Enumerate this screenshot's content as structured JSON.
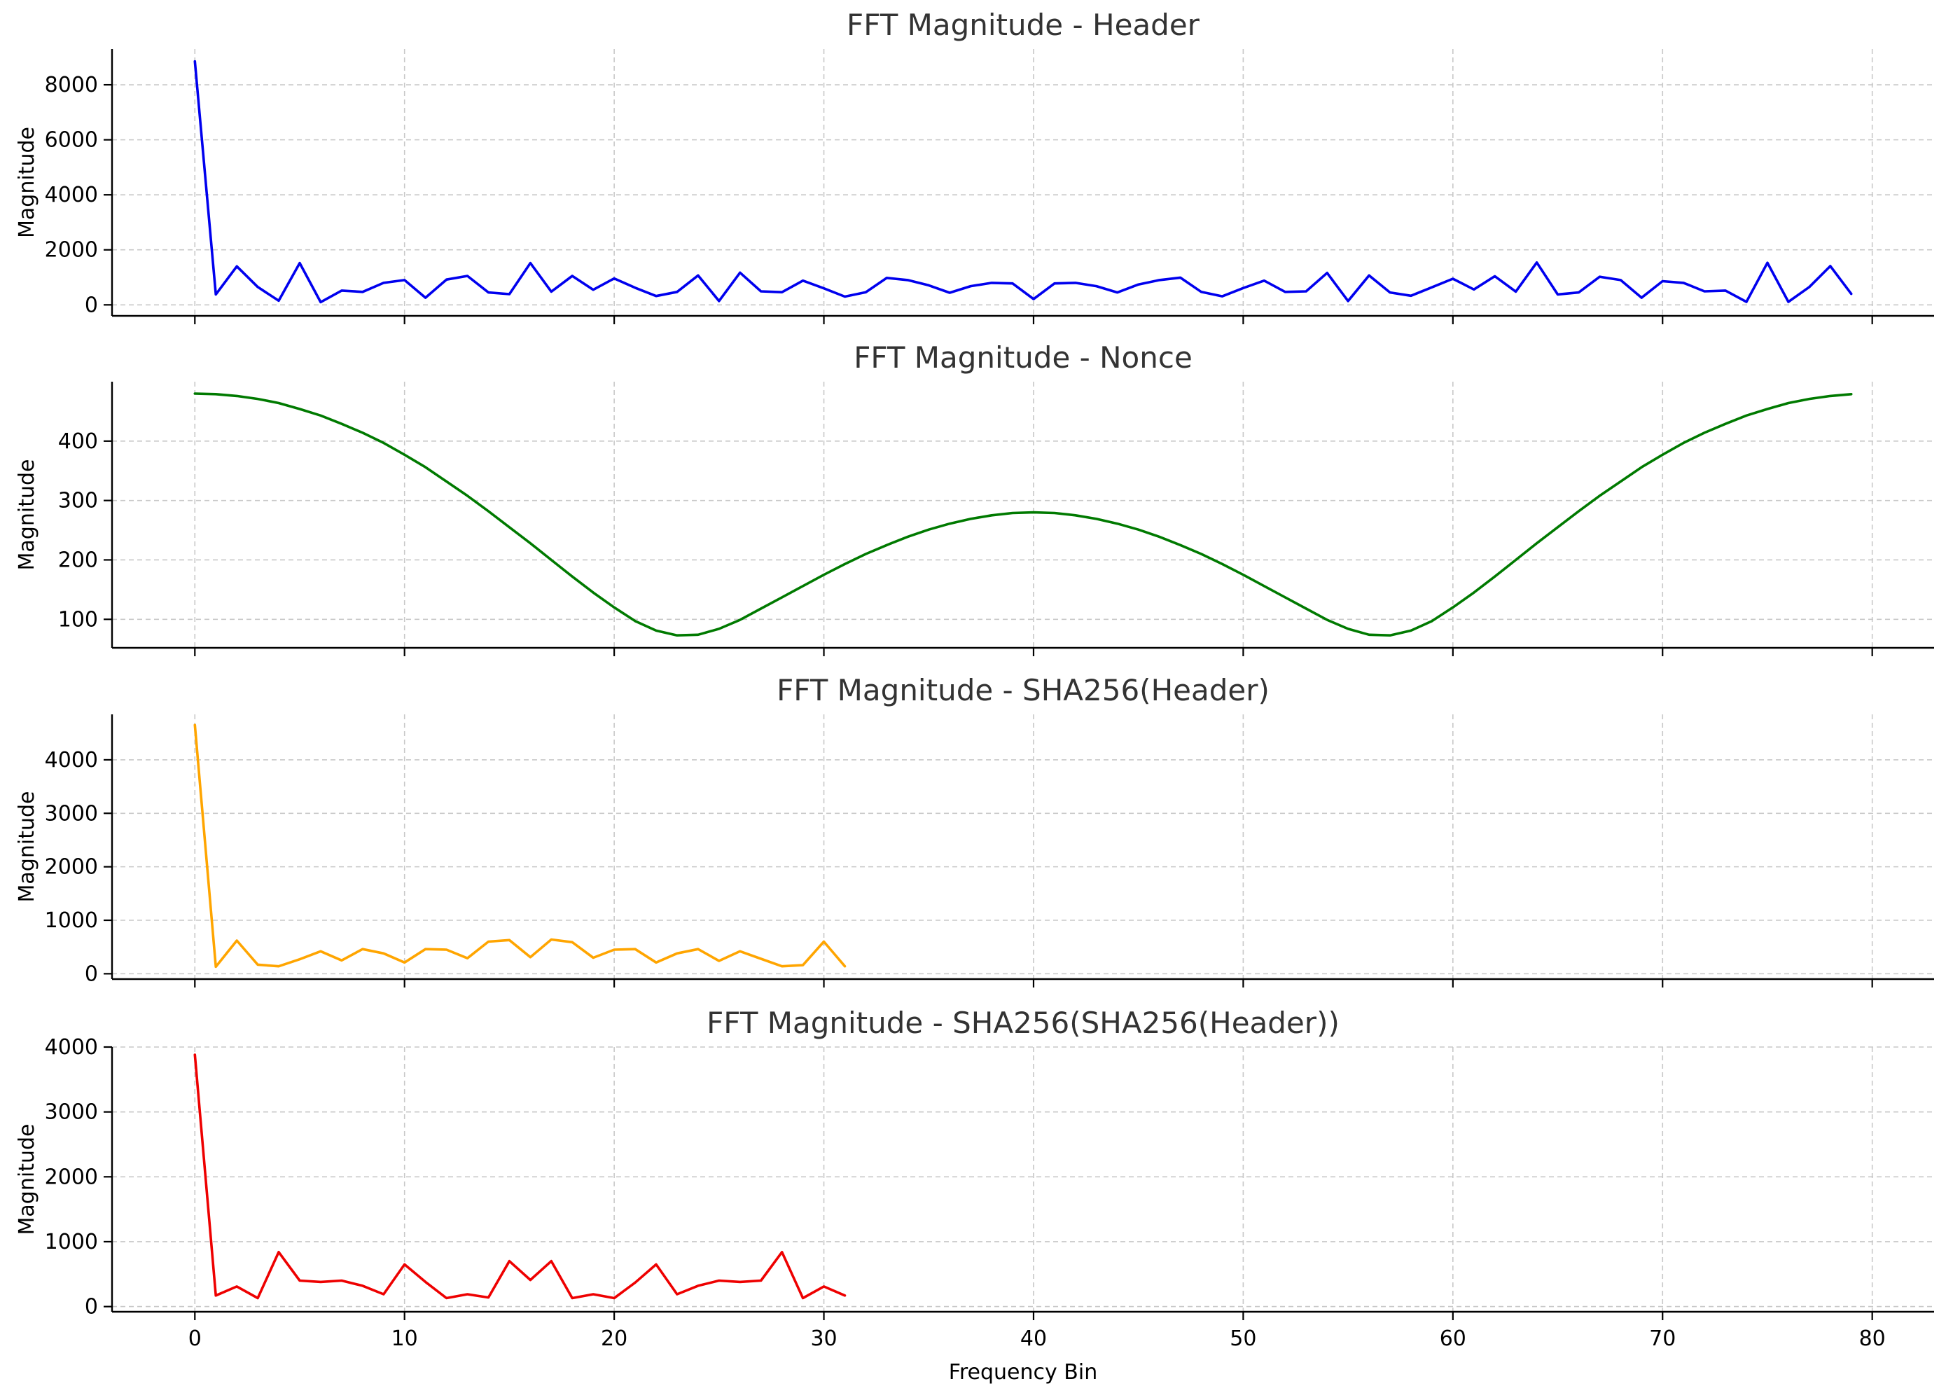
{
  "chart_data": [
    {
      "type": "line",
      "title": "FFT Magnitude - Header",
      "xlabel": "",
      "ylabel": "Magnitude",
      "xlim": [
        -3.95,
        82.95
      ],
      "ylim": [
        -400,
        9300
      ],
      "xticks": [
        0,
        10,
        20,
        30,
        40,
        50,
        60,
        70,
        80
      ],
      "xtick_labels_visible": false,
      "yticks": [
        0,
        2000,
        4000,
        6000,
        8000
      ],
      "grid": true,
      "color": "#0000ee",
      "x": [
        0,
        1,
        2,
        3,
        4,
        5,
        6,
        7,
        8,
        9,
        10,
        11,
        12,
        13,
        14,
        15,
        16,
        17,
        18,
        19,
        20,
        21,
        22,
        23,
        24,
        25,
        26,
        27,
        28,
        29,
        30,
        31,
        32,
        33,
        34,
        35,
        36,
        37,
        38,
        39,
        40,
        41,
        42,
        43,
        44,
        45,
        46,
        47,
        48,
        49,
        50,
        51,
        52,
        53,
        54,
        55,
        56,
        57,
        58,
        59,
        60,
        61,
        62,
        63,
        64,
        65,
        66,
        67,
        68,
        69,
        70,
        71,
        72,
        73,
        74,
        75,
        76,
        77,
        78,
        79
      ],
      "values": [
        8850,
        380,
        1400,
        650,
        150,
        1520,
        100,
        520,
        470,
        800,
        900,
        260,
        920,
        1050,
        450,
        390,
        1520,
        480,
        1050,
        550,
        960,
        620,
        320,
        470,
        1070,
        140,
        1170,
        490,
        460,
        880,
        600,
        300,
        460,
        980,
        900,
        710,
        440,
        680,
        800,
        780,
        210,
        780,
        800,
        680,
        450,
        740,
        900,
        990,
        470,
        310,
        610,
        880,
        470,
        490,
        1160,
        140,
        1070,
        450,
        330,
        640,
        950,
        560,
        1040,
        480,
        1540,
        380,
        450,
        1020,
        900,
        260,
        860,
        800,
        490,
        520,
        110,
        1530,
        110,
        650,
        1410,
        400
      ]
    },
    {
      "type": "line",
      "title": "FFT Magnitude - Nonce",
      "xlabel": "",
      "ylabel": "Magnitude",
      "xlim": [
        -3.95,
        82.95
      ],
      "ylim": [
        52,
        500
      ],
      "xticks": [
        0,
        10,
        20,
        30,
        40,
        50,
        60,
        70,
        80
      ],
      "xtick_labels_visible": false,
      "yticks": [
        100,
        200,
        300,
        400
      ],
      "grid": true,
      "color": "#007a00",
      "x": [
        0,
        1,
        2,
        3,
        4,
        5,
        6,
        7,
        8,
        9,
        10,
        11,
        12,
        13,
        14,
        15,
        16,
        17,
        18,
        19,
        20,
        21,
        22,
        23,
        24,
        25,
        26,
        27,
        28,
        29,
        30,
        31,
        32,
        33,
        34,
        35,
        36,
        37,
        38,
        39,
        40,
        41,
        42,
        43,
        44,
        45,
        46,
        47,
        48,
        49,
        50,
        51,
        52,
        53,
        54,
        55,
        56,
        57,
        58,
        59,
        60,
        61,
        62,
        63,
        64,
        65,
        66,
        67,
        68,
        69,
        70,
        71,
        72,
        73,
        74,
        75,
        76,
        77,
        78,
        79
      ],
      "values": [
        480,
        479,
        476,
        471,
        464,
        454,
        443,
        429,
        414,
        397,
        377,
        356,
        332,
        308,
        282,
        255,
        228,
        200,
        172,
        145,
        120,
        97,
        81,
        73,
        74,
        84,
        99,
        118,
        137,
        156,
        175,
        193,
        210,
        225,
        239,
        251,
        261,
        269,
        275,
        279,
        280,
        279,
        275,
        269,
        261,
        251,
        239,
        225,
        210,
        193,
        175,
        156,
        137,
        118,
        99,
        84,
        74,
        73,
        81,
        97,
        120,
        145,
        172,
        200,
        228,
        255,
        282,
        308,
        332,
        356,
        377,
        397,
        414,
        429,
        443,
        454,
        464,
        471,
        476,
        479
      ]
    },
    {
      "type": "line",
      "title": "FFT Magnitude - SHA256(Header)",
      "xlabel": "",
      "ylabel": "Magnitude",
      "xlim": [
        -3.95,
        82.95
      ],
      "ylim": [
        -100,
        4850
      ],
      "xticks": [
        0,
        10,
        20,
        30,
        40,
        50,
        60,
        70,
        80
      ],
      "xtick_labels_visible": false,
      "yticks": [
        0,
        1000,
        2000,
        3000,
        4000
      ],
      "grid": true,
      "color": "#ffa500",
      "x": [
        0,
        1,
        2,
        3,
        4,
        5,
        6,
        7,
        8,
        9,
        10,
        11,
        12,
        13,
        14,
        15,
        16,
        17,
        18,
        19,
        20,
        21,
        22,
        23,
        24,
        25,
        26,
        27,
        28,
        29,
        30,
        31
      ],
      "values": [
        4650,
        130,
        620,
        170,
        140,
        270,
        420,
        250,
        460,
        380,
        210,
        460,
        450,
        290,
        600,
        630,
        310,
        640,
        590,
        300,
        450,
        460,
        210,
        380,
        460,
        240,
        420,
        280,
        140,
        160,
        600,
        140
      ]
    },
    {
      "type": "line",
      "title": "FFT Magnitude - SHA256(SHA256(Header))",
      "xlabel": "Frequency Bin",
      "ylabel": "Magnitude",
      "xlim": [
        -3.95,
        82.95
      ],
      "ylim": [
        -80,
        4000
      ],
      "xticks": [
        0,
        10,
        20,
        30,
        40,
        50,
        60,
        70,
        80
      ],
      "xtick_labels_visible": true,
      "yticks": [
        0,
        1000,
        2000,
        3000,
        4000
      ],
      "grid": true,
      "color": "#ee0000",
      "x": [
        0,
        1,
        2,
        3,
        4,
        5,
        6,
        7,
        8,
        9,
        10,
        11,
        12,
        13,
        14,
        15,
        16,
        17,
        18,
        19,
        20,
        21,
        22,
        23,
        24,
        25,
        26,
        27,
        28,
        29,
        30,
        31
      ],
      "values": [
        3880,
        170,
        310,
        130,
        840,
        400,
        380,
        400,
        320,
        190,
        650,
        380,
        130,
        190,
        140,
        700,
        410,
        700,
        130,
        190,
        130,
        370,
        650,
        190,
        320,
        400,
        380,
        400,
        840,
        130,
        310,
        170
      ]
    }
  ]
}
